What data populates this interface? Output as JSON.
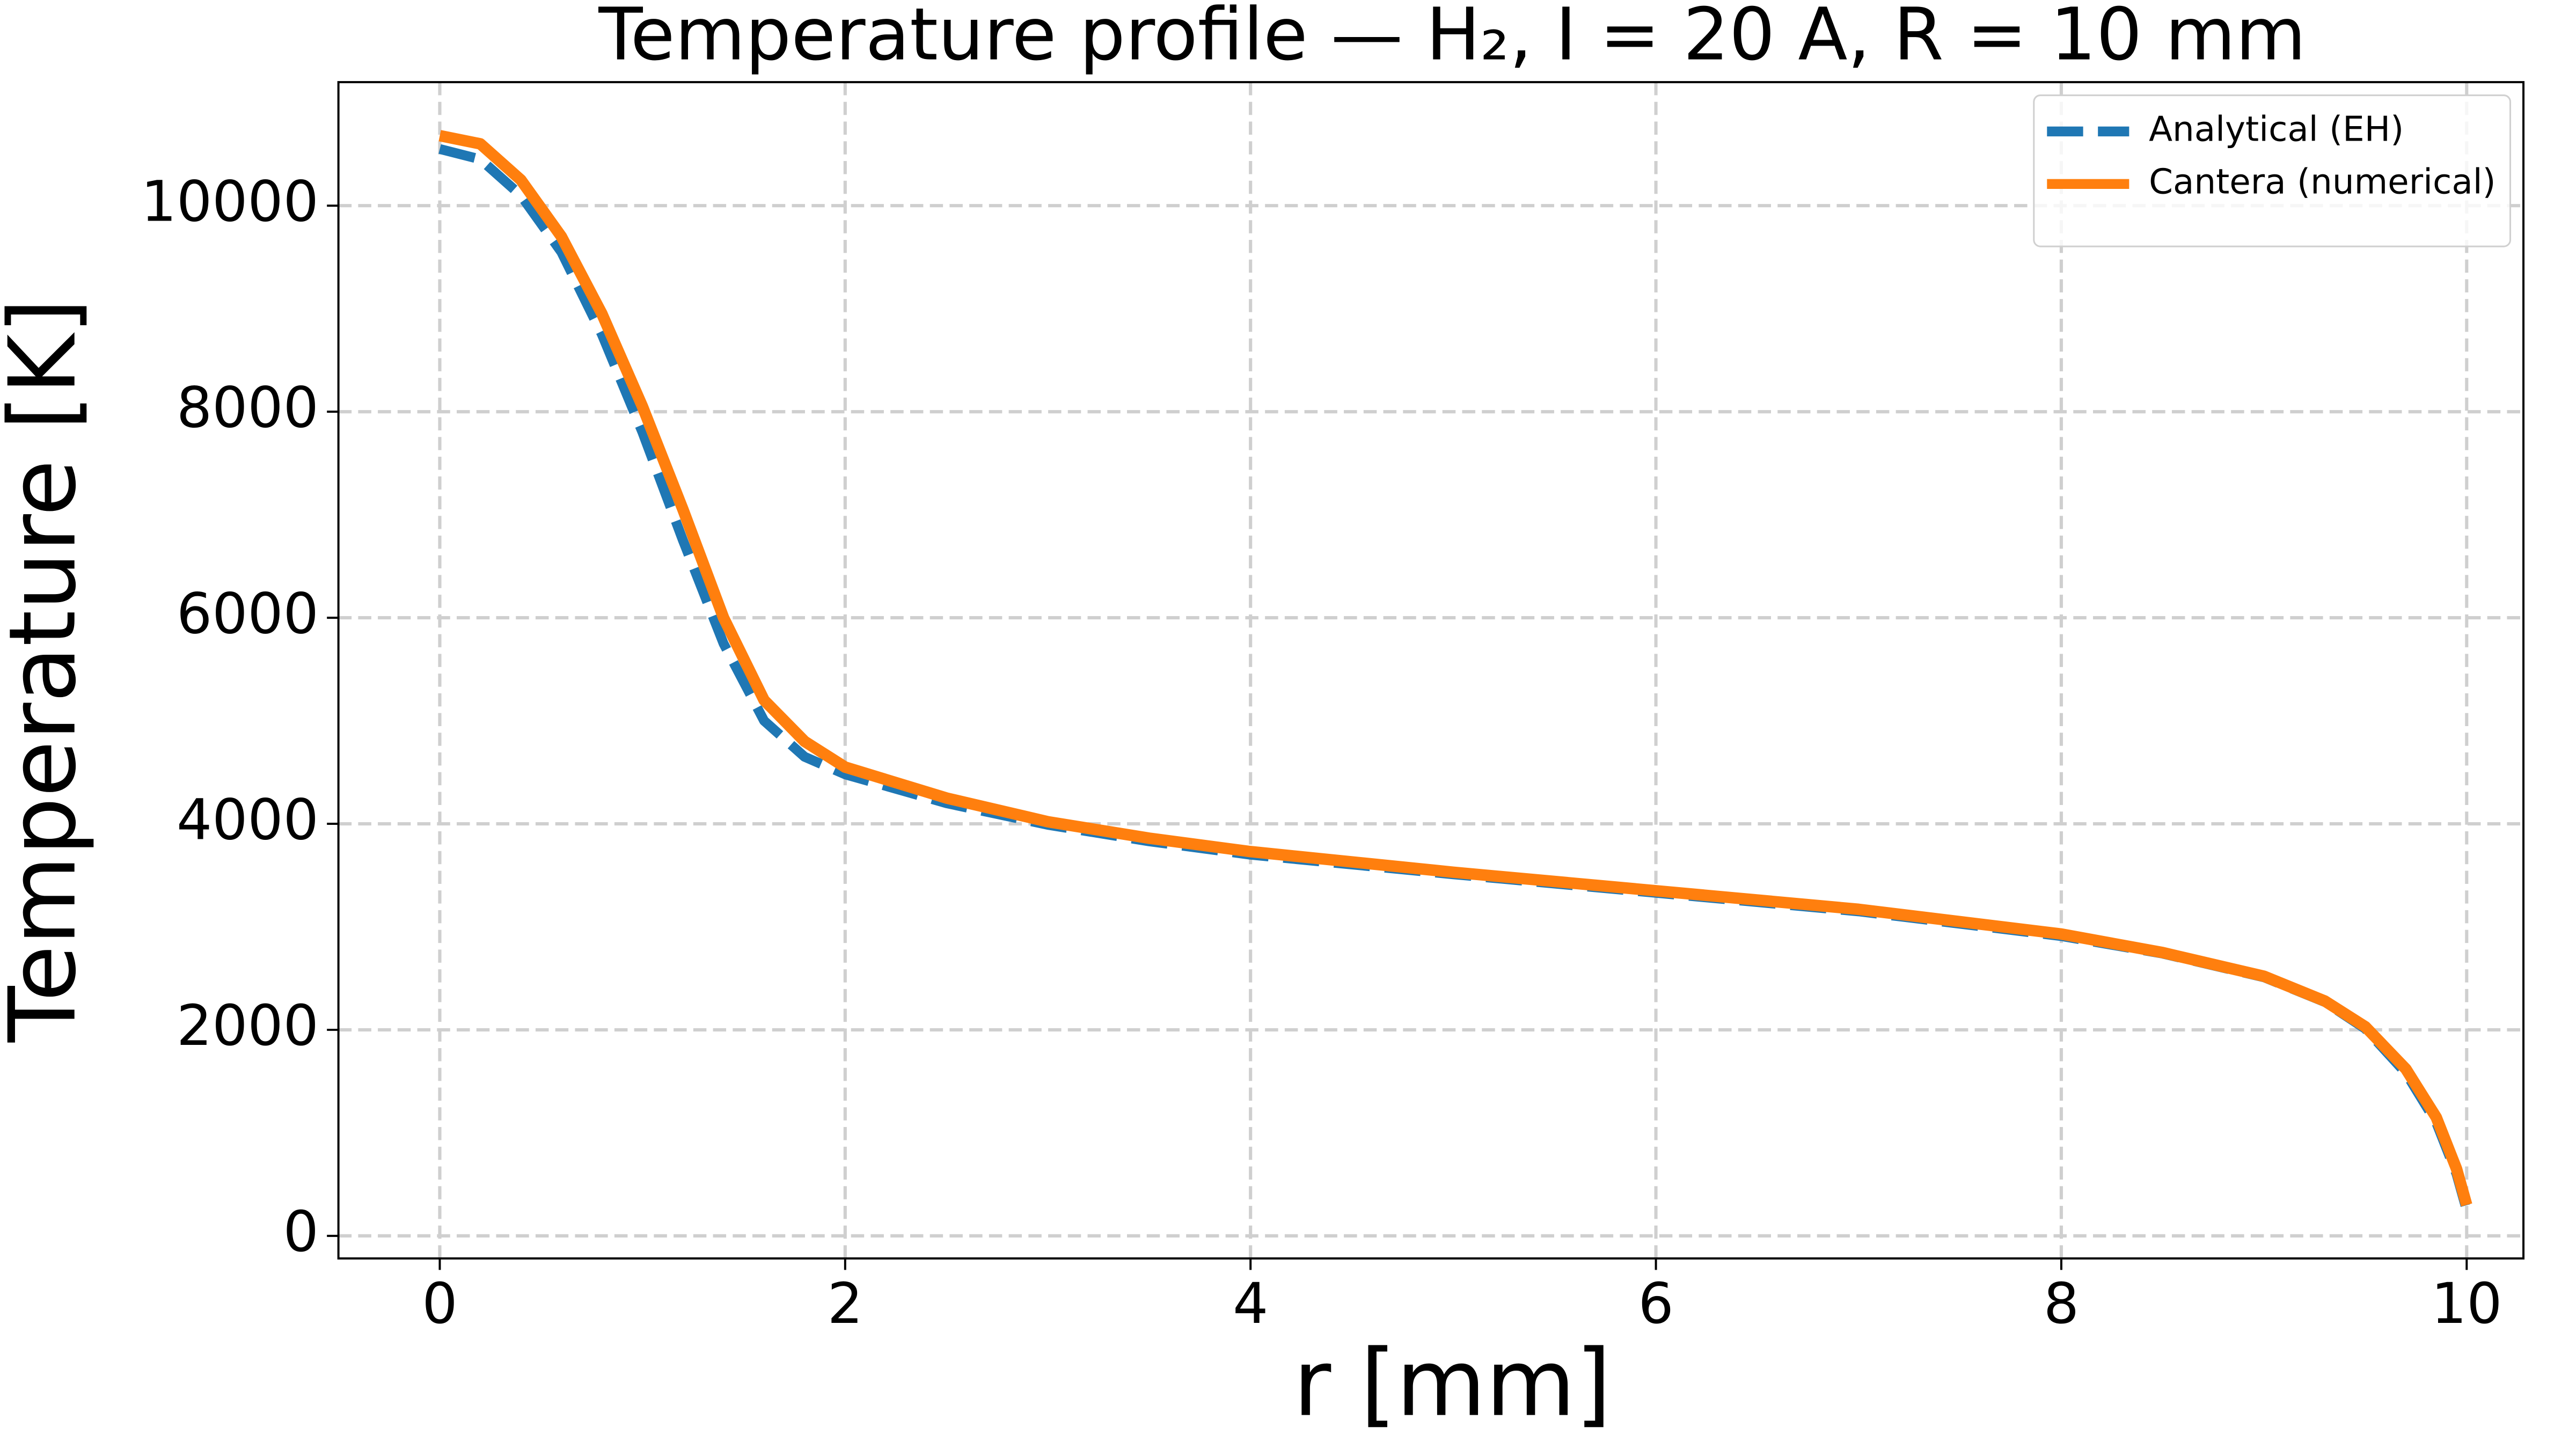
{
  "chart_data": {
    "type": "line",
    "title": "Temperature profile — H₂, I = 20 A, R = 10 mm",
    "x_label": "r [mm]",
    "y_label": "Temperature [K]",
    "x": [
      0,
      0.2,
      0.4,
      0.6,
      0.8,
      1.0,
      1.2,
      1.4,
      1.6,
      1.8,
      2.0,
      2.5,
      3,
      3.5,
      4,
      5,
      6,
      7,
      8,
      8.5,
      9,
      9.3,
      9.5,
      9.7,
      9.85,
      9.95,
      10
    ],
    "series": [
      {
        "name": "Analytical (EH)",
        "color": "#1f77b4",
        "linestyle": "dashed",
        "values": [
          10550,
          10450,
          10100,
          9550,
          8750,
          7800,
          6750,
          5750,
          5000,
          4650,
          4480,
          4200,
          3990,
          3830,
          3700,
          3510,
          3330,
          3150,
          2910,
          2740,
          2510,
          2270,
          2010,
          1580,
          1100,
          600,
          250
        ]
      },
      {
        "name": "Cantera (numerical)",
        "color": "#ff7f0e",
        "linestyle": "solid",
        "values": [
          10680,
          10600,
          10250,
          9700,
          8950,
          8050,
          7050,
          6000,
          5200,
          4800,
          4550,
          4250,
          4020,
          3860,
          3730,
          3530,
          3350,
          3170,
          2930,
          2750,
          2520,
          2280,
          2030,
          1620,
          1150,
          650,
          300
        ]
      }
    ],
    "xlim": [
      -0.5,
      10.28
    ],
    "ylim": [
      -219,
      11199
    ],
    "xticks": [
      0,
      2,
      4,
      6,
      8,
      10
    ],
    "yticks": [
      0,
      2000,
      4000,
      6000,
      8000,
      10000
    ],
    "grid": true,
    "legend": "upper right"
  }
}
